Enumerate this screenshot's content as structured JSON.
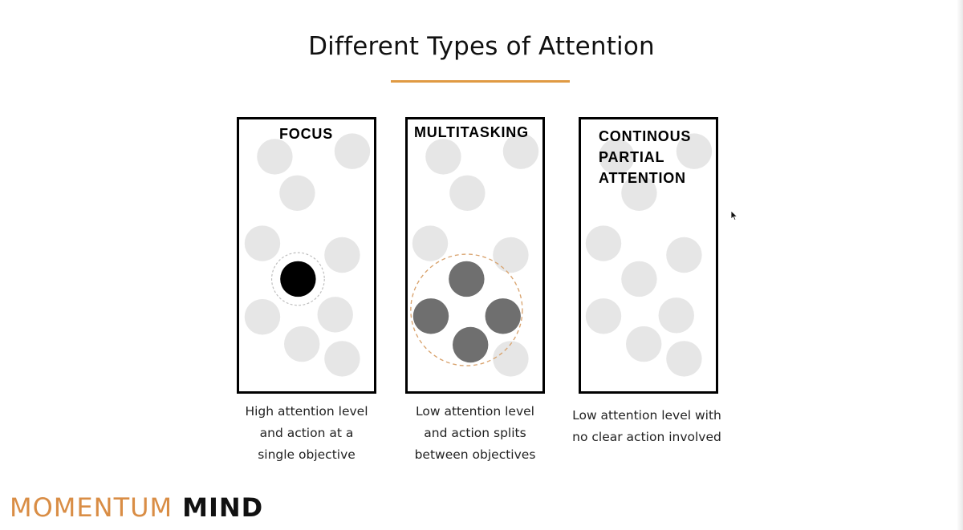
{
  "slide": {
    "title": "Different Types of Attention",
    "accent_color": "#e09a43"
  },
  "panels": [
    {
      "title": "FOCUS",
      "caption": [
        "High attention level",
        "and action at a",
        "single objective"
      ],
      "active_circles": 1,
      "active_color": "#000000"
    },
    {
      "title": "MULTITASKING",
      "caption": [
        "Low attention level",
        "and action splits",
        "between objectives"
      ],
      "active_circles": 4,
      "active_color": "#6f6f6f"
    },
    {
      "title_lines": [
        "CONTINOUS",
        "PARTIAL",
        "ATTENTION"
      ],
      "caption": [
        "Low attention level with",
        "no clear action involved"
      ],
      "active_circles": 0
    }
  ],
  "brand": {
    "word1": "MOMENTUM",
    "word2": "MIND",
    "word1_color": "#d98d45",
    "word2_color": "#111111"
  },
  "colors": {
    "inactive_circle": "#e6e6e6",
    "panel_border": "#000000",
    "dashed_ring": "#d9a36e"
  },
  "icons": {
    "cursor": "mouse-pointer-icon"
  }
}
